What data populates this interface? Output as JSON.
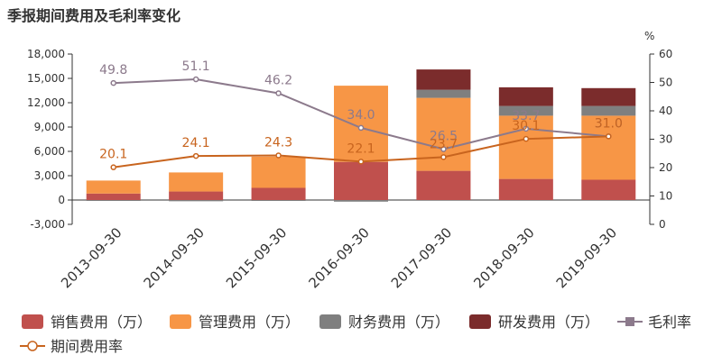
{
  "chart_data": {
    "type": "bar",
    "title": "季报期间费用及毛利率变化",
    "categories": [
      "2013-09-30",
      "2014-09-30",
      "2015-09-30",
      "2016-09-30",
      "2017-09-30",
      "2018-09-30",
      "2019-09-30"
    ],
    "y_left": {
      "ylim": [
        -3000,
        18000
      ],
      "ticks": [
        "-3,000",
        "0",
        "3,000",
        "6,000",
        "9,000",
        "12,000",
        "15,000",
        "18,000"
      ]
    },
    "y_right": {
      "unit_label": "%",
      "ylim": [
        0,
        60
      ],
      "ticks": [
        "0",
        "10",
        "20",
        "30",
        "40",
        "50",
        "60"
      ]
    },
    "series": [
      {
        "name": "销售费用（万）",
        "type": "bar",
        "color": "#c0504d",
        "values": [
          800,
          1050,
          1500,
          4700,
          3600,
          2600,
          2500
        ]
      },
      {
        "name": "管理费用（万）",
        "type": "bar",
        "color": "#f79646",
        "values": [
          1600,
          2350,
          3850,
          9400,
          9000,
          7800,
          7900
        ]
      },
      {
        "name": "财务费用（万）",
        "type": "bar",
        "color": "#7f7f7f",
        "values": [
          -50,
          -150,
          -100,
          -200,
          1000,
          1200,
          1200
        ]
      },
      {
        "name": "研发费用（万）",
        "type": "bar",
        "color": "#7b2c2c",
        "values": [
          0,
          0,
          0,
          0,
          2500,
          2300,
          2200
        ]
      },
      {
        "name": "毛利率",
        "type": "line",
        "axis": "right",
        "color": "#8c7a8c",
        "values": [
          49.8,
          51.1,
          46.2,
          34.0,
          26.5,
          33.7,
          31.0
        ],
        "labels": [
          "49.8",
          "51.1",
          "46.2",
          "34.0",
          "26.5",
          "33.7",
          "31.0"
        ]
      },
      {
        "name": "期间费用率",
        "type": "line",
        "axis": "right",
        "color": "#c8641e",
        "values": [
          20.1,
          24.1,
          24.3,
          22.1,
          23.7,
          30.1,
          31.0
        ],
        "labels": [
          "20.1",
          "24.1",
          "24.3",
          "22.1",
          "23.7",
          "30.1",
          "31.0"
        ]
      }
    ],
    "legend_position": "bottom",
    "grid": false
  }
}
